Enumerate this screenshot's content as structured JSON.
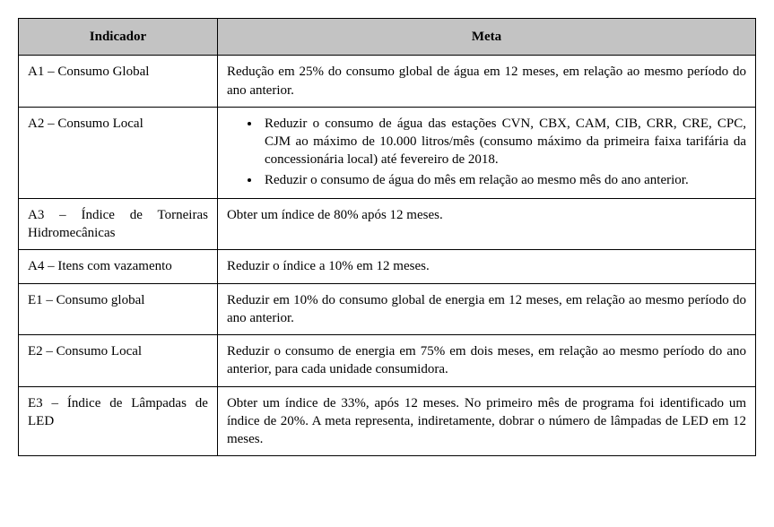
{
  "table": {
    "type": "table",
    "background_color": "#ffffff",
    "border_color": "#000000",
    "header_bg": "#c3c3c3",
    "font_family": "Times New Roman",
    "font_size_pt": 12,
    "columns": [
      {
        "key": "indicador",
        "label": "Indicador",
        "width_pct": 27,
        "align": "left"
      },
      {
        "key": "meta",
        "label": "Meta",
        "width_pct": 73,
        "align": "justify"
      }
    ],
    "rows": [
      {
        "indicador": "A1 – Consumo Global",
        "meta_type": "text",
        "meta_text": "Redução em 25% do consumo global de água em 12 meses, em relação ao mesmo período do ano anterior."
      },
      {
        "indicador": "A2 – Consumo Local",
        "meta_type": "list",
        "meta_items": [
          "Reduzir o consumo de água das estações CVN, CBX, CAM, CIB, CRR, CRE, CPC, CJM ao máximo de 10.000 litros/mês (consumo máximo da primeira faixa tarifária da concessionária local) até fevereiro de 2018.",
          "Reduzir o consumo de água do mês em relação ao mesmo mês do ano anterior."
        ]
      },
      {
        "indicador": "A3 – Índice de Torneiras Hidromecânicas",
        "meta_type": "text",
        "meta_text": "Obter um índice de 80% após 12 meses."
      },
      {
        "indicador": "A4 – Itens com vazamento",
        "meta_type": "text",
        "meta_text": "Reduzir o índice a 10% em 12 meses."
      },
      {
        "indicador": "E1 – Consumo global",
        "meta_type": "text",
        "meta_text": "Reduzir em 10% do consumo global de energia em 12 meses, em relação ao mesmo período do ano anterior."
      },
      {
        "indicador": "E2 – Consumo Local",
        "meta_type": "text",
        "meta_text": "Reduzir o consumo de energia em 75% em dois meses, em relação ao mesmo período do ano anterior, para cada unidade consumidora."
      },
      {
        "indicador": "E3 – Índice de Lâmpadas de LED",
        "meta_type": "text",
        "meta_text": "Obter um índice de 33%, após 12 meses. No primeiro mês de programa foi identificado um índice de 20%. A meta representa, indiretamente, dobrar o número de lâmpadas de LED em 12 meses."
      }
    ]
  }
}
